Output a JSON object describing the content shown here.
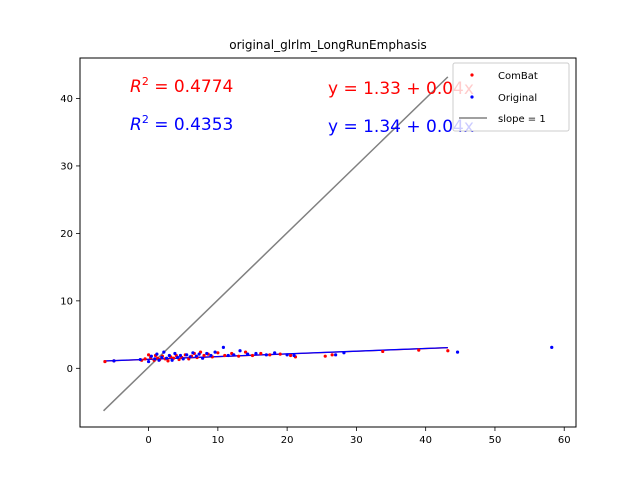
{
  "chart_data": {
    "type": "scatter",
    "title": "original_glrlm_LongRunEmphasis",
    "xlabel": "",
    "ylabel": "",
    "xlim": [
      -9.9,
      61.7
    ],
    "ylim": [
      -8.7,
      46.0
    ],
    "xticks": [
      0,
      10,
      20,
      30,
      40,
      50,
      60
    ],
    "yticks": [
      0,
      10,
      20,
      30,
      40
    ],
    "grid": false,
    "legend_position": "top-right",
    "annotations": {
      "r2_combat": "R^2 = 0.4774",
      "r2_original": "R^2 = 0.4353",
      "fit_combat": "y = 1.33 + 0.04x",
      "fit_original": "y = 1.34 + 0.04x"
    },
    "colors": {
      "combat": "#ff0000",
      "original": "#0000ff",
      "slope": "#808080"
    },
    "series": [
      {
        "name": "CombAt",
        "label": "ComBat",
        "kind": "points",
        "color": "#ff0000",
        "points": [
          [
            -6.3,
            1.0
          ],
          [
            -5.0,
            1.1
          ],
          [
            -1.0,
            1.2
          ],
          [
            -0.5,
            1.4
          ],
          [
            0.0,
            2.0
          ],
          [
            0.3,
            1.6
          ],
          [
            0.8,
            1.2
          ],
          [
            1.0,
            1.9
          ],
          [
            1.3,
            1.5
          ],
          [
            1.6,
            1.3
          ],
          [
            2.0,
            1.8
          ],
          [
            2.4,
            1.4
          ],
          [
            2.8,
            1.1
          ],
          [
            3.2,
            1.7
          ],
          [
            3.6,
            1.5
          ],
          [
            4.0,
            1.9
          ],
          [
            4.4,
            1.3
          ],
          [
            4.8,
            1.6
          ],
          [
            5.3,
            2.0
          ],
          [
            5.8,
            1.4
          ],
          [
            6.2,
            1.8
          ],
          [
            6.6,
            2.2
          ],
          [
            7.0,
            1.6
          ],
          [
            7.5,
            2.4
          ],
          [
            8.0,
            1.9
          ],
          [
            8.6,
            2.1
          ],
          [
            9.2,
            1.7
          ],
          [
            10.0,
            2.3
          ],
          [
            11.0,
            1.9
          ],
          [
            12.0,
            2.2
          ],
          [
            13.0,
            1.8
          ],
          [
            14.0,
            2.4
          ],
          [
            15.0,
            1.9
          ],
          [
            16.2,
            2.2
          ],
          [
            17.5,
            2.0
          ],
          [
            19.0,
            2.1
          ],
          [
            20.5,
            1.9
          ],
          [
            21.2,
            1.7
          ],
          [
            25.5,
            1.8
          ],
          [
            26.5,
            2.0
          ],
          [
            33.8,
            2.5
          ],
          [
            39.0,
            2.7
          ],
          [
            43.2,
            2.6
          ]
        ]
      },
      {
        "name": "Original",
        "label": "Original",
        "kind": "points",
        "color": "#0000ff",
        "points": [
          [
            -5.0,
            1.1
          ],
          [
            -1.2,
            1.3
          ],
          [
            0.0,
            1.0
          ],
          [
            0.4,
            1.8
          ],
          [
            0.9,
            1.4
          ],
          [
            1.2,
            2.1
          ],
          [
            1.5,
            1.2
          ],
          [
            1.9,
            1.6
          ],
          [
            2.2,
            2.4
          ],
          [
            2.6,
            1.5
          ],
          [
            3.0,
            1.9
          ],
          [
            3.4,
            1.2
          ],
          [
            3.8,
            2.2
          ],
          [
            4.2,
            1.6
          ],
          [
            4.6,
            1.9
          ],
          [
            5.0,
            1.4
          ],
          [
            5.5,
            2.0
          ],
          [
            6.0,
            1.7
          ],
          [
            6.4,
            2.3
          ],
          [
            6.9,
            1.8
          ],
          [
            7.3,
            2.1
          ],
          [
            7.8,
            1.5
          ],
          [
            8.4,
            2.2
          ],
          [
            9.0,
            1.9
          ],
          [
            9.6,
            2.4
          ],
          [
            10.8,
            3.1
          ],
          [
            11.5,
            1.9
          ],
          [
            12.3,
            2.0
          ],
          [
            13.2,
            2.6
          ],
          [
            14.3,
            2.1
          ],
          [
            15.5,
            2.2
          ],
          [
            17.0,
            2.0
          ],
          [
            18.2,
            2.3
          ],
          [
            20.0,
            2.0
          ],
          [
            21.0,
            1.9
          ],
          [
            27.0,
            2.0
          ],
          [
            28.2,
            2.3
          ],
          [
            44.6,
            2.4
          ],
          [
            58.2,
            3.1
          ]
        ]
      },
      {
        "name": "slope = 1",
        "label": "slope = 1",
        "kind": "line",
        "color": "#808080",
        "points": [
          [
            -6.5,
            -6.3
          ],
          [
            43.2,
            43.2
          ]
        ]
      },
      {
        "name": "ComBat fit",
        "kind": "fit",
        "color": "#ff0000",
        "points": [
          [
            -6.5,
            1.07
          ],
          [
            43.2,
            3.06
          ]
        ]
      },
      {
        "name": "Original fit",
        "kind": "fit",
        "color": "#0000ff",
        "points": [
          [
            -6.5,
            1.08
          ],
          [
            43.2,
            3.07
          ]
        ]
      }
    ]
  }
}
